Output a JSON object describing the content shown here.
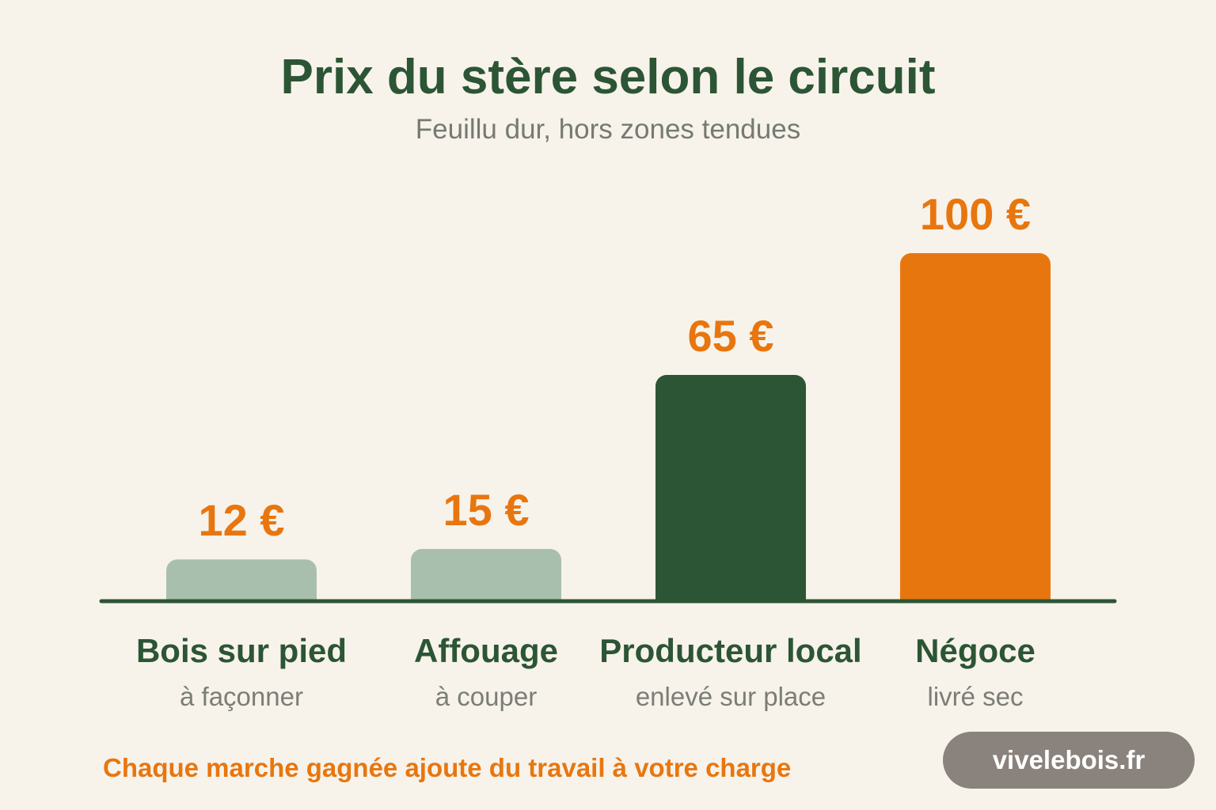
{
  "header": {
    "title": "Prix du stère selon le circuit",
    "subtitle": "Feuillu dur, hors zones tendues"
  },
  "chart_data": {
    "type": "bar",
    "title": "Prix du stère selon le circuit",
    "subtitle": "Feuillu dur, hors zones tendues",
    "categories": [
      "Bois sur pied",
      "Affouage",
      "Producteur local",
      "Négoce"
    ],
    "sublabels": [
      "à façonner",
      "à couper",
      "enlevé sur place",
      "livré sec"
    ],
    "values": [
      12,
      15,
      65,
      100
    ],
    "value_labels": [
      "12 €",
      "15 €",
      "65 €",
      "100 €"
    ],
    "colors": [
      "#a9bfad",
      "#a9bfad",
      "#2c5535",
      "#e8760f"
    ],
    "value_label_color": "#e8760f",
    "axis_color": "#2c5535",
    "ylim": [
      0,
      100
    ],
    "grid": false,
    "xlabel": "",
    "ylabel": ""
  },
  "footer": {
    "note": "Chaque marche gagnée ajoute du travail à votre charge",
    "brand": "vivelebois.fr"
  }
}
